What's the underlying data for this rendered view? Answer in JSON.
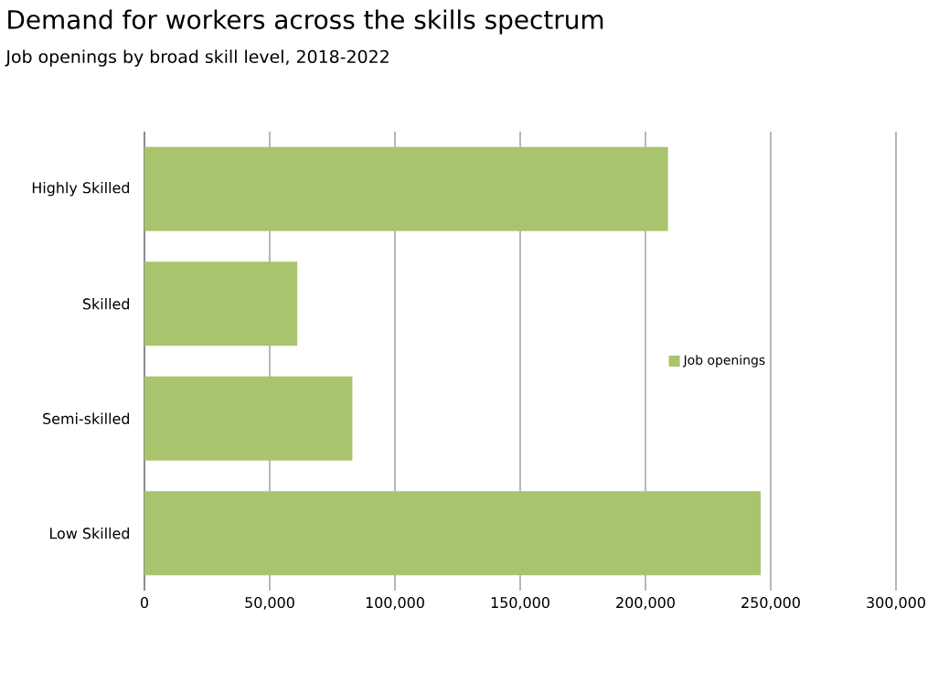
{
  "chart_data": {
    "type": "bar",
    "orientation": "horizontal",
    "title": "Demand for workers across the skills spectrum",
    "subtitle": "Job openings by broad skill level, 2018-2022",
    "categories": [
      "Highly Skilled",
      "Skilled",
      "Semi-skilled",
      "Low Skilled"
    ],
    "series": [
      {
        "name": "Job openings",
        "color": "#a9c46c",
        "values": [
          209000,
          61000,
          83000,
          246000
        ]
      }
    ],
    "xlim": [
      0,
      300000
    ],
    "xticks": [
      0,
      {
        "value": 50000,
        "label": "50,000"
      },
      {
        "value": 100000,
        "label": "100,000"
      },
      {
        "value": 150000,
        "label": "150,000"
      },
      {
        "value": 200000,
        "label": "200,000"
      },
      {
        "value": 250000,
        "label": "250,000"
      },
      {
        "value": 300000,
        "label": "300,000"
      }
    ],
    "grid": "x",
    "legend": "right"
  }
}
